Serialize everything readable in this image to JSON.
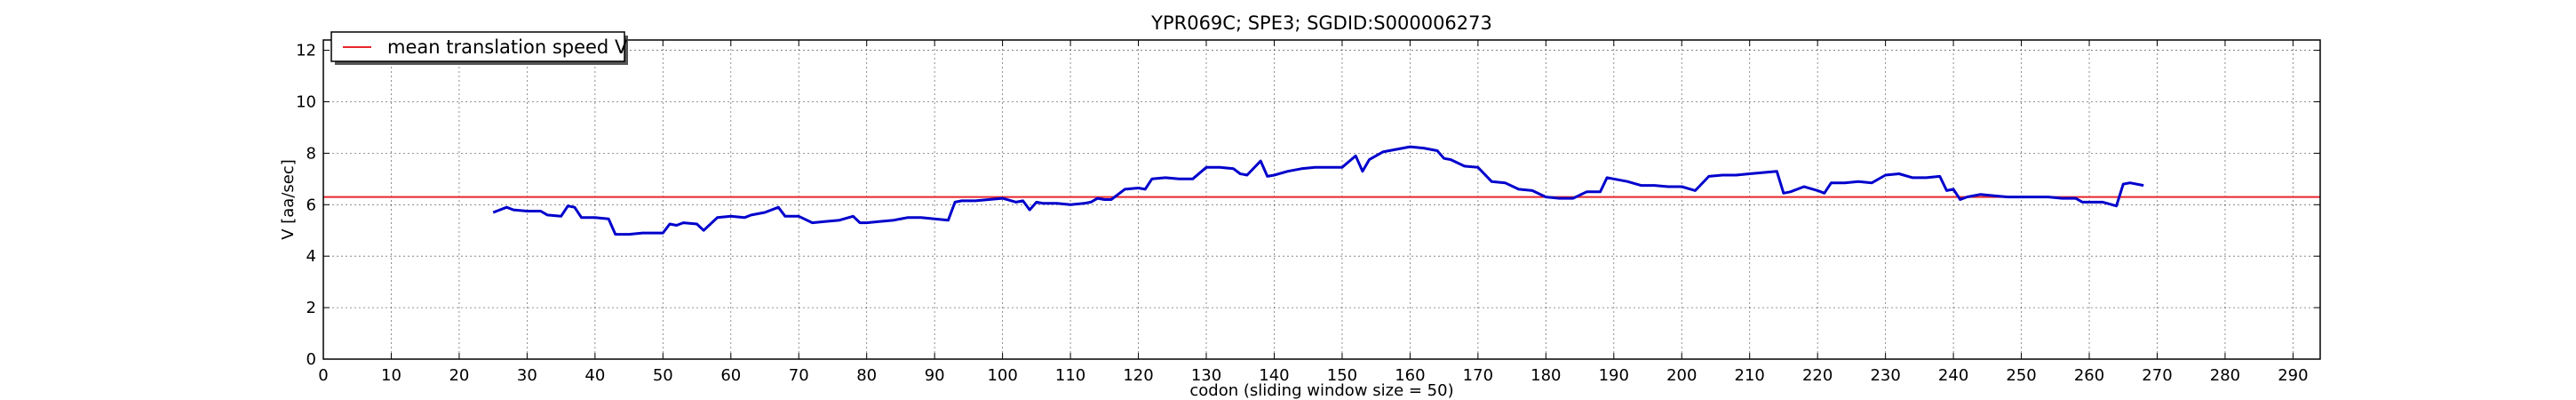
{
  "chart_data": {
    "type": "line",
    "title": "YPR069C; SPE3; SGDID:S000006273",
    "xlabel": "codon  (sliding window size = 50)",
    "ylabel": "V [aa/sec]",
    "xlim": [
      0,
      294
    ],
    "ylim": [
      0,
      12.4
    ],
    "xticks": [
      0,
      10,
      20,
      30,
      40,
      50,
      60,
      70,
      80,
      90,
      100,
      110,
      120,
      130,
      140,
      150,
      160,
      170,
      180,
      190,
      200,
      210,
      220,
      230,
      240,
      250,
      260,
      270,
      280,
      290
    ],
    "yticks": [
      0,
      2,
      4,
      6,
      8,
      10,
      12
    ],
    "grid": true,
    "legend": {
      "placement": "top-left",
      "entries": [
        {
          "label": "mean translation speed V",
          "color": "#e8262b"
        }
      ]
    },
    "mean_line": {
      "y": 6.3,
      "color": "#e8262b"
    },
    "series": [
      {
        "color": "#0000cc",
        "x": [
          25,
          27,
          28,
          30,
          32,
          33,
          35,
          36,
          37,
          38,
          40,
          42,
          43,
          45,
          47,
          48,
          50,
          51,
          52,
          53,
          55,
          56,
          58,
          60,
          62,
          63,
          65,
          67,
          68,
          70,
          72,
          74,
          76,
          78,
          79,
          80,
          82,
          84,
          86,
          88,
          90,
          92,
          93,
          94,
          96,
          98,
          100,
          102,
          103,
          104,
          105,
          106,
          108,
          110,
          112,
          113,
          114,
          115,
          116,
          118,
          120,
          121,
          122,
          124,
          126,
          128,
          130,
          132,
          134,
          135,
          136,
          138,
          139,
          140,
          142,
          144,
          146,
          148,
          150,
          152,
          153,
          154,
          156,
          158,
          160,
          162,
          164,
          165,
          166,
          168,
          170,
          172,
          174,
          176,
          178,
          180,
          182,
          184,
          186,
          188,
          189,
          190,
          192,
          194,
          196,
          198,
          200,
          202,
          204,
          206,
          208,
          210,
          212,
          214,
          215,
          216,
          218,
          220,
          221,
          222,
          224,
          226,
          228,
          230,
          232,
          234,
          236,
          238,
          239,
          240,
          241,
          242,
          244,
          246,
          248,
          250,
          252,
          254,
          256,
          258,
          259,
          260,
          262,
          264,
          265,
          266,
          268
        ],
        "values": [
          5.7,
          5.9,
          5.8,
          5.75,
          5.75,
          5.6,
          5.55,
          5.95,
          5.9,
          5.5,
          5.5,
          5.45,
          4.85,
          4.85,
          4.9,
          4.9,
          4.9,
          5.25,
          5.2,
          5.3,
          5.25,
          5.0,
          5.5,
          5.55,
          5.5,
          5.6,
          5.7,
          5.9,
          5.55,
          5.55,
          5.3,
          5.35,
          5.4,
          5.55,
          5.3,
          5.3,
          5.35,
          5.4,
          5.5,
          5.5,
          5.45,
          5.4,
          6.1,
          6.15,
          6.15,
          6.2,
          6.25,
          6.1,
          6.15,
          5.8,
          6.1,
          6.05,
          6.05,
          6.0,
          6.05,
          6.1,
          6.25,
          6.2,
          6.2,
          6.6,
          6.65,
          6.6,
          7.0,
          7.05,
          7.0,
          7.0,
          7.45,
          7.45,
          7.4,
          7.2,
          7.15,
          7.7,
          7.1,
          7.15,
          7.3,
          7.4,
          7.45,
          7.45,
          7.45,
          7.9,
          7.3,
          7.75,
          8.05,
          8.15,
          8.25,
          8.2,
          8.1,
          7.8,
          7.75,
          7.5,
          7.45,
          6.9,
          6.85,
          6.6,
          6.55,
          6.3,
          6.25,
          6.25,
          6.5,
          6.5,
          7.05,
          7.0,
          6.9,
          6.75,
          6.75,
          6.7,
          6.7,
          6.55,
          7.1,
          7.15,
          7.15,
          7.2,
          7.25,
          7.3,
          6.45,
          6.5,
          6.7,
          6.55,
          6.45,
          6.85,
          6.85,
          6.9,
          6.85,
          7.15,
          7.2,
          7.05,
          7.05,
          7.1,
          6.55,
          6.6,
          6.2,
          6.3,
          6.4,
          6.35,
          6.3,
          6.3,
          6.3,
          6.3,
          6.25,
          6.25,
          6.1,
          6.1,
          6.1,
          5.95,
          6.8,
          6.85,
          6.75
        ]
      }
    ]
  }
}
